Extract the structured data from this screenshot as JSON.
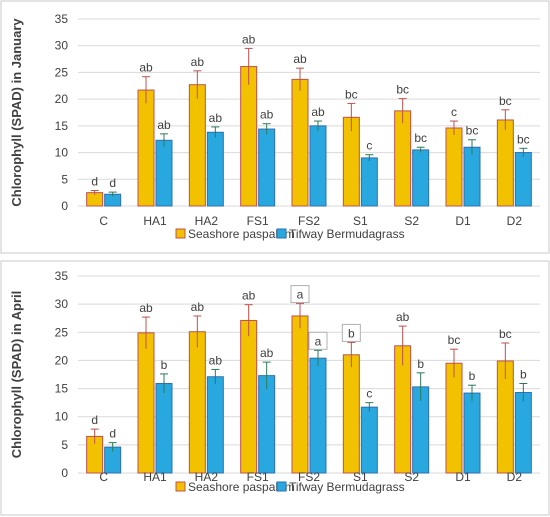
{
  "colors": {
    "seashore_fill": "#f2c200",
    "seashore_edge": "#c0504d",
    "tifway_fill": "#29a8e0",
    "tifway_edge": "#2f6fb0",
    "seashore_error": "#c0504d",
    "tifway_error": "#2c7a5a"
  },
  "chart_data": [
    {
      "type": "bar",
      "ylabel": "Chlorophyll (SPAD) in January",
      "xlabel": "",
      "ylim": [
        0,
        35
      ],
      "yticks": [
        0,
        5,
        10,
        15,
        20,
        25,
        30,
        35
      ],
      "grid": true,
      "legend_position": "bottom",
      "categories": [
        "C",
        "HA1",
        "HA2",
        "FS1",
        "FS2",
        "S1",
        "S2",
        "D1",
        "D2"
      ],
      "series": [
        {
          "name": "Seashore paspalum",
          "values": [
            2.5,
            21.7,
            22.7,
            26.1,
            23.7,
            16.6,
            17.8,
            14.6,
            16.1
          ],
          "errors": [
            0.4,
            2.5,
            2.6,
            3.4,
            2.1,
            2.6,
            2.3,
            1.3,
            1.9
          ],
          "letters": [
            "d",
            "ab",
            "ab",
            "ab",
            "ab",
            "bc",
            "bc",
            "c",
            "bc"
          ]
        },
        {
          "name": "Tifway Bermudagrass",
          "values": [
            2.2,
            12.3,
            13.8,
            14.4,
            15.0,
            9.0,
            10.5,
            11.0,
            10.0
          ],
          "errors": [
            0.4,
            1.2,
            1.0,
            1.0,
            0.9,
            0.6,
            0.5,
            1.4,
            0.8
          ],
          "letters": [
            "d",
            "ab",
            "ab",
            "ab",
            "ab",
            "c",
            "bc",
            "bc",
            "bc"
          ]
        }
      ]
    },
    {
      "type": "bar",
      "ylabel": "Chlorophyll (SPAD) in April",
      "xlabel": "",
      "ylim": [
        0,
        35
      ],
      "yticks": [
        0,
        5,
        10,
        15,
        20,
        25,
        30,
        35
      ],
      "grid": true,
      "legend_position": "bottom",
      "categories": [
        "C",
        "HA1",
        "HA2",
        "FS1",
        "FS2",
        "S1",
        "S2",
        "D1",
        "D2"
      ],
      "series": [
        {
          "name": "Seashore paspalum",
          "values": [
            6.5,
            24.9,
            25.1,
            27.1,
            27.9,
            21.0,
            22.6,
            19.5,
            19.9
          ],
          "errors": [
            1.3,
            2.8,
            2.8,
            2.8,
            2.2,
            2.2,
            3.5,
            2.5,
            3.2
          ],
          "letters": [
            "d",
            "ab",
            "ab",
            "ab",
            "a",
            "b",
            "ab",
            "bc",
            "bc"
          ]
        },
        {
          "name": "Tifway Bermudagrass",
          "values": [
            4.6,
            15.9,
            17.1,
            17.3,
            20.4,
            11.7,
            15.3,
            14.2,
            14.3
          ],
          "errors": [
            0.8,
            1.7,
            1.3,
            2.4,
            1.4,
            0.8,
            2.5,
            1.4,
            1.6
          ],
          "letters": [
            "d",
            "b",
            "ab",
            "ab",
            "a",
            "c",
            "b",
            "b",
            "b"
          ]
        }
      ]
    }
  ]
}
